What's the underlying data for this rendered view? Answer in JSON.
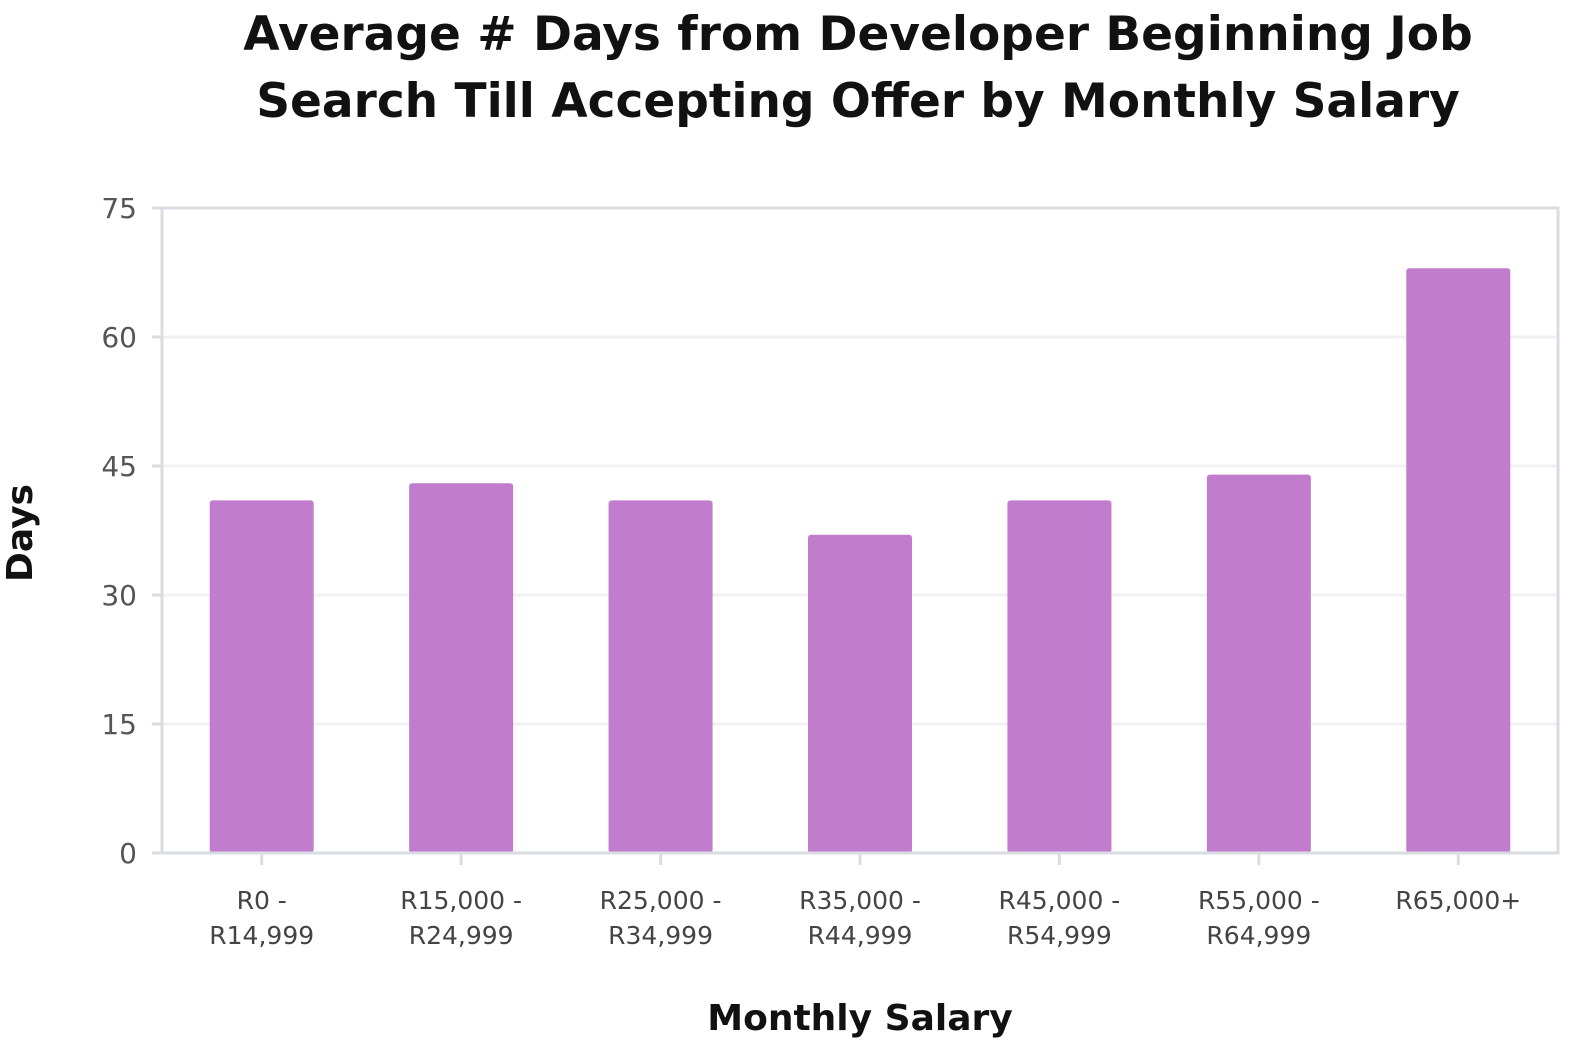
{
  "chart_data": {
    "type": "bar",
    "title": "Average # Days from Developer Beginning Job Search Till Accepting Offer by Monthly Salary",
    "title_lines": [
      "Average # Days from Developer Beginning Job",
      "Search Till Accepting Offer by Monthly Salary"
    ],
    "xlabel": "Monthly Salary",
    "ylabel": "Days",
    "categories": [
      "R0 - R14,999",
      "R15,000 - R24,999",
      "R25,000 - R34,999",
      "R35,000 - R44,999",
      "R45,000 - R54,999",
      "R55,000 - R64,999",
      "R65,000+"
    ],
    "category_label_lines": [
      [
        "R0 -",
        "R14,999"
      ],
      [
        "R15,000 -",
        "R24,999"
      ],
      [
        "R25,000 -",
        "R34,999"
      ],
      [
        "R35,000 -",
        "R44,999"
      ],
      [
        "R45,000 -",
        "R54,999"
      ],
      [
        "R55,000 -",
        "R64,999"
      ],
      [
        "R65,000+"
      ]
    ],
    "values": [
      41,
      43,
      41,
      37,
      41,
      44,
      68
    ],
    "ylim": [
      0,
      75
    ],
    "yticks": [
      0,
      15,
      30,
      45,
      60,
      75
    ],
    "grid": true,
    "legend": "none",
    "colors": {
      "bar": "#c27ccd",
      "axis": "#d9dde3",
      "grid": "#f0f1f3"
    }
  }
}
